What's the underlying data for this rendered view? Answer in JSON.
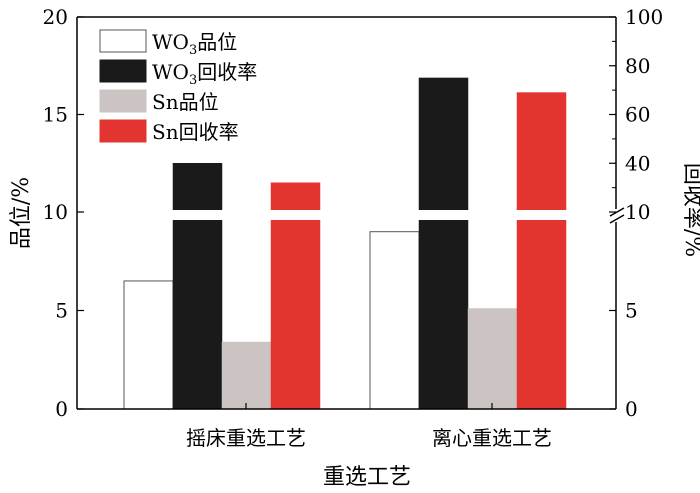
{
  "chart_data": {
    "type": "bar",
    "title": "",
    "xlabel": "重选工艺",
    "ylabel_left": "品位/%",
    "ylabel_right": "回收率/%",
    "categories": [
      "摇床重选工艺",
      "离心重选工艺"
    ],
    "y_left": {
      "lower_range": [
        0,
        10
      ],
      "upper_range": [
        10,
        20
      ],
      "ticks_lower": [
        "0",
        "5",
        "10"
      ],
      "ticks_upper": [
        "15",
        "20"
      ]
    },
    "y_right": {
      "lower_range": [
        0,
        10
      ],
      "upper_range": [
        20,
        100
      ],
      "ticks_lower": [
        "0",
        "5",
        "10"
      ],
      "ticks_upper": [
        "40",
        "60",
        "80",
        "100"
      ]
    },
    "axis_break": true,
    "series": [
      {
        "name": "WO₃品位",
        "name_base": "WO",
        "name_sub": "3",
        "name_rest": "品位",
        "axis": "left",
        "color": "#ffffff",
        "values": [
          6.5,
          9.0
        ]
      },
      {
        "name": "WO₃回收率",
        "name_base": "WO",
        "name_sub": "3",
        "name_rest": "回收率",
        "axis": "right",
        "color": "#1a1a1a",
        "values": [
          40,
          75
        ]
      },
      {
        "name": "Sn品位",
        "name_base": "Sn品位",
        "name_sub": "",
        "name_rest": "",
        "axis": "left",
        "color": "#ccc3c3",
        "values": [
          3.4,
          5.1
        ]
      },
      {
        "name": "Sn回收率",
        "name_base": "Sn回收率",
        "name_sub": "",
        "name_rest": "",
        "axis": "right",
        "color": "#e33530",
        "values": [
          32,
          69
        ]
      }
    ],
    "legend_position": "top-left",
    "grid": false
  }
}
